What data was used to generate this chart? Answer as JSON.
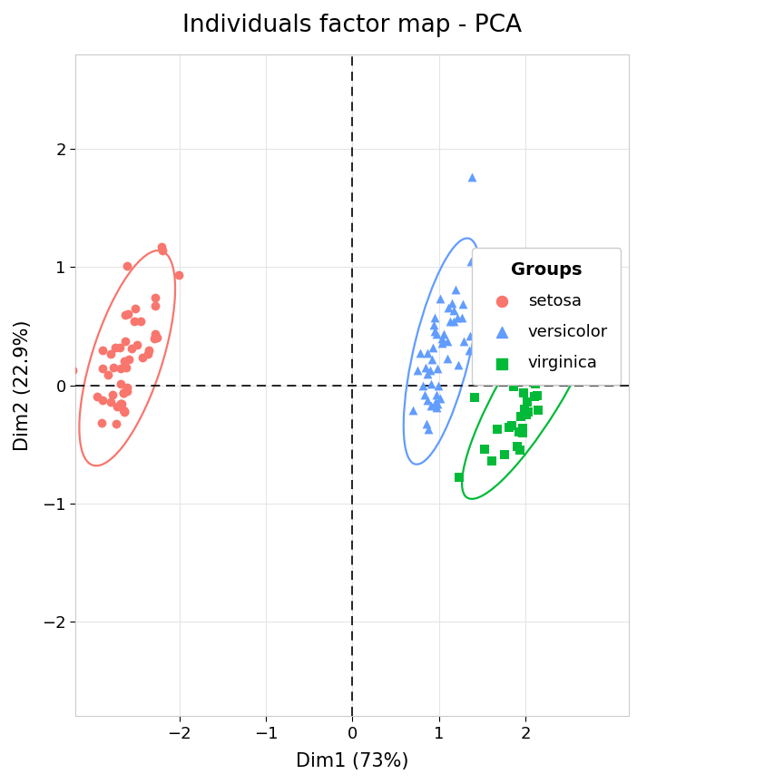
{
  "title": "Individuals factor map - PCA",
  "xlabel": "Dim1 (73%)",
  "ylabel": "Dim2 (22.9%)",
  "setosa_color": "#F8766D",
  "versicolor_color": "#619CFF",
  "virginica_color": "#00BA38",
  "background_color": "#FFFFFF",
  "grid_color": "#E5E5E5",
  "xlim": [
    -3.2,
    3.2
  ],
  "ylim": [
    -2.8,
    2.8
  ],
  "setosa_x": [
    -2.684126,
    -2.714142,
    -2.888991,
    -2.745343,
    -2.728717,
    -2.28086,
    -2.820538,
    -2.626145,
    -2.886405,
    -2.672631,
    -2.509422,
    -2.613867,
    -2.7874,
    -3.227883,
    -2.621456,
    -2.19712,
    -2.590322,
    -2.648991,
    -2.01122,
    -2.676937,
    -2.262781,
    -2.604946,
    -2.677644,
    -2.280826,
    -2.556489,
    -2.518605,
    -2.428874,
    -2.599843,
    -2.641614,
    -2.768874,
    -2.76611,
    -2.493042,
    -2.350631,
    -2.20182,
    -2.672631,
    -2.579752,
    -2.364536,
    -2.671621,
    -2.889765,
    -2.633834,
    -2.640138,
    -2.892406,
    -2.953904,
    -2.447162,
    -2.278475,
    -2.634432,
    -2.294015,
    -2.795228,
    -2.601977,
    -2.648991
  ],
  "setosa_y": [
    0.319397,
    -0.177001,
    0.144949,
    0.318299,
    -0.326419,
    0.74133,
    0.089212,
    0.593564,
    0.294362,
    -0.156307,
    0.650951,
    0.154178,
    -0.138543,
    0.130726,
    0.371611,
    1.14052,
    0.601011,
    -0.064867,
    0.935686,
    0.01368,
    0.40389,
    1.009524,
    0.145965,
    0.432553,
    0.310277,
    0.540085,
    0.234627,
    -0.04889,
    -0.211614,
    -0.075383,
    0.151196,
    0.339907,
    0.294362,
    1.175822,
    -0.156307,
    0.218003,
    0.268455,
    -0.155609,
    -0.121483,
    -0.218219,
    0.204523,
    -0.313892,
    -0.09302,
    0.544476,
    0.673095,
    -0.221561,
    0.394428,
    0.26436,
    -0.014716,
    -0.064867
  ],
  "versicolor_x": [
    1.280179,
    0.93086,
    1.462796,
    0.970412,
    1.356578,
    1.376611,
    1.18893,
    0.878048,
    1.344484,
    1.017116,
    1.261821,
    0.860001,
    1.093811,
    1.226701,
    0.700487,
    0.946381,
    0.781866,
    0.997089,
    1.291157,
    0.868534,
    1.101547,
    0.7497,
    1.375168,
    1.035201,
    0.944838,
    0.848024,
    1.175817,
    1.131741,
    1.01849,
    0.921049,
    0.966534,
    0.970667,
    0.978977,
    1.171009,
    0.832768,
    0.813989,
    0.951614,
    1.055638,
    0.913394,
    0.965979,
    1.150264,
    0.90544,
    1.218296,
    0.980556,
    0.900049,
    1.106551,
    0.976462,
    1.039956,
    0.867289,
    0.867098
  ],
  "versicolor_y": [
    0.685318,
    0.319882,
    0.499839,
    -0.186544,
    0.41893,
    1.765776,
    0.813905,
    -0.368375,
    0.293641,
    0.737899,
    0.570534,
    -0.324091,
    0.225927,
    0.175399,
    -0.211527,
    0.574967,
    0.275655,
    -0.00171,
    0.376523,
    0.273148,
    0.374597,
    0.128843,
    1.048253,
    0.393434,
    0.513597,
    0.14996,
    0.638,
    0.543776,
    -0.110671,
    0.218793,
    -0.156307,
    0.437052,
    0.145,
    0.545027,
    -0.082218,
    -0.003897,
    0.458297,
    0.433459,
    -0.174374,
    -0.139067,
    0.694439,
    0.013217,
    0.573736,
    -0.155898,
    0.130726,
    0.65836,
    -0.081462,
    0.358665,
    -0.125455,
    0.097213
  ],
  "virginica_x": [
    2.531895,
    1.410877,
    2.61789,
    1.971186,
    2.342125,
    2.886673,
    1.231729,
    2.217078,
    2.082727,
    2.346882,
    1.939186,
    1.67448,
    2.104391,
    1.610403,
    1.86194,
    2.228234,
    2.36506,
    2.817208,
    2.662699,
    1.840809,
    2.053604,
    1.527273,
    2.69096,
    1.975571,
    2.012474,
    2.117562,
    2.305059,
    2.378085,
    2.147637,
    1.80968,
    1.908904,
    1.823427,
    1.950459,
    2.021572,
    1.928002,
    2.551086,
    2.194819,
    2.184082,
    1.840809,
    2.035398,
    2.132547,
    1.963218,
    2.184082,
    2.479842,
    2.428438,
    1.990913,
    1.931867,
    2.067286,
    2.117219,
    1.754
  ],
  "virginica_y": [
    0.751943,
    -0.104052,
    0.593564,
    -0.362766,
    0.188001,
    0.564791,
    -0.776083,
    0.08398,
    0.169252,
    0.573427,
    0.057459,
    -0.368375,
    -0.09269,
    -0.640798,
    -0.00972,
    0.396877,
    0.597991,
    0.567052,
    0.614264,
    -0.341097,
    0.07406,
    -0.539476,
    0.66028,
    -0.067226,
    -0.2467,
    0.043975,
    0.09805,
    0.527975,
    -0.21038,
    -0.35803,
    -0.52005,
    0.145,
    -0.2646,
    -0.143375,
    -0.3959,
    0.540085,
    0.06644,
    0.04429,
    -0.341097,
    -0.228022,
    -0.08606,
    -0.40458,
    0.04429,
    0.37795,
    0.38871,
    -0.20005,
    -0.543946,
    0.06746,
    0.01291,
    -0.5821
  ],
  "marker_size": 50,
  "legend_title": "Groups",
  "tick_fontsize": 13,
  "label_fontsize": 15,
  "title_fontsize": 19,
  "legend_fontsize": 13,
  "ellipse_lw": 1.6
}
